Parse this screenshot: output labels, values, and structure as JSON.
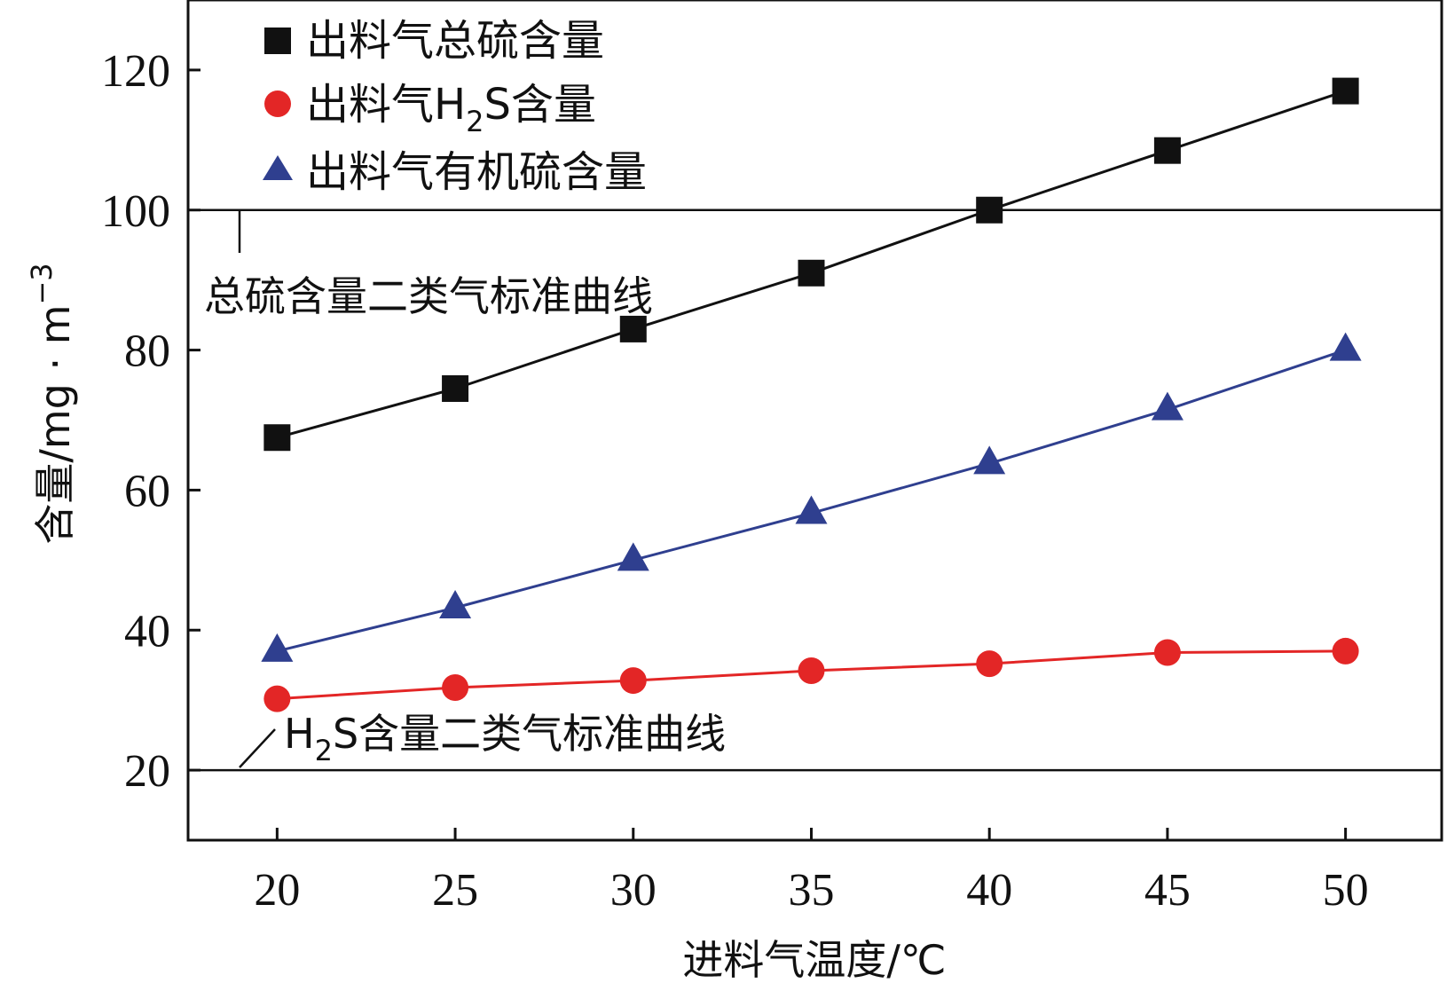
{
  "chart_data": {
    "type": "line",
    "xlabel": "进料气温度/℃",
    "ylabel": "含量/mg · m",
    "ylabel_sup": "−3",
    "x": [
      20,
      25,
      30,
      35,
      40,
      45,
      50
    ],
    "xticks": [
      "20",
      "25",
      "30",
      "35",
      "40",
      "45",
      "50"
    ],
    "yticks": [
      "20",
      "40",
      "60",
      "80",
      "100",
      "120"
    ],
    "xlim": [
      17.5,
      52.7
    ],
    "ylim": [
      10,
      130
    ],
    "grid": false,
    "legend_position": "top-left",
    "series": [
      {
        "name": "出料气总硫含量",
        "marker": "square",
        "color": "#111111",
        "values": [
          67.5,
          74.5,
          83,
          91,
          100,
          108.5,
          117
        ]
      },
      {
        "name_pre": "出料气H",
        "name_sub": "2",
        "name_post": "S含量",
        "marker": "circle",
        "color": "#e32626",
        "values": [
          30.2,
          31.8,
          32.8,
          34.2,
          35.2,
          36.8,
          37
        ]
      },
      {
        "name": "出料气有机硫含量",
        "marker": "triangle",
        "color": "#2f3f8f",
        "values": [
          37,
          43.2,
          50,
          56.7,
          63.8,
          71.5,
          80
        ]
      }
    ],
    "reference_lines": [
      {
        "value": 100,
        "label": "总硫含量二类气标准曲线"
      },
      {
        "value": 20,
        "label_pre": "H",
        "label_sub": "2",
        "label_post": "S含量二类气标准曲线"
      }
    ]
  }
}
